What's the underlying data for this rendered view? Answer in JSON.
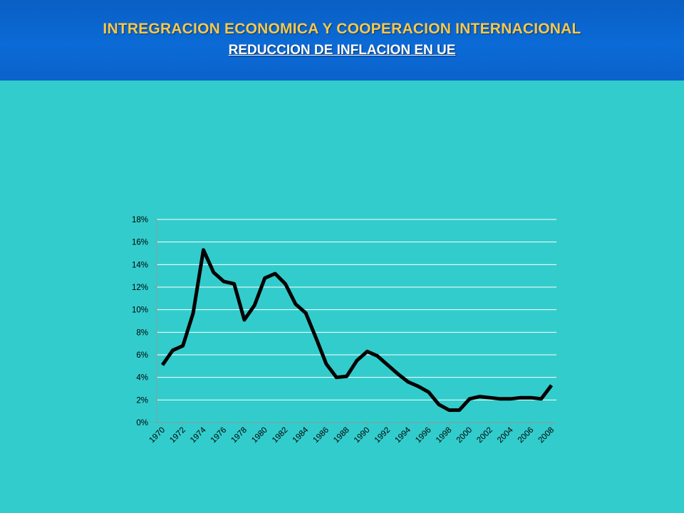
{
  "header": {
    "title": "INTREGRACION ECONOMICA Y COOPERACION INTERNACIONAL",
    "subtitle": "REDUCCION DE INFLACION EN UE"
  },
  "colors": {
    "background": "#33cccc",
    "header_bar": "#0b66d0",
    "title_text": "#f5c84c",
    "subtitle_text": "#ffffff",
    "series_line": "#000000",
    "gridline": "#ffffff"
  },
  "chart_data": {
    "type": "line",
    "title": "",
    "xlabel": "",
    "ylabel": "",
    "ylim": [
      0,
      18
    ],
    "y_ticks": [
      0,
      2,
      4,
      6,
      8,
      10,
      12,
      14,
      16,
      18
    ],
    "y_tick_labels": [
      "0%",
      "2%",
      "4%",
      "6%",
      "8%",
      "10%",
      "12%",
      "14%",
      "16%",
      "18%"
    ],
    "x_tick_labels": [
      "1970",
      "1972",
      "1974",
      "1976",
      "1978",
      "1980",
      "1982",
      "1984",
      "1986",
      "1988",
      "1990",
      "1992",
      "1994",
      "1996",
      "1998",
      "2000",
      "2002",
      "2004",
      "2006",
      "2008"
    ],
    "grid": true,
    "legend": "none",
    "x": [
      1970,
      1971,
      1972,
      1973,
      1974,
      1975,
      1976,
      1977,
      1978,
      1979,
      1980,
      1981,
      1982,
      1983,
      1984,
      1985,
      1986,
      1987,
      1988,
      1989,
      1990,
      1991,
      1992,
      1993,
      1994,
      1995,
      1996,
      1997,
      1998,
      1999,
      2000,
      2001,
      2002,
      2003,
      2004,
      2005,
      2006,
      2007,
      2008
    ],
    "series": [
      {
        "values": [
          5.1,
          6.4,
          6.8,
          9.7,
          15.3,
          13.3,
          12.5,
          12.3,
          9.1,
          10.4,
          12.8,
          13.2,
          12.3,
          10.5,
          9.7,
          7.5,
          5.2,
          4.0,
          4.1,
          5.5,
          6.3,
          5.9,
          5.1,
          4.3,
          3.6,
          3.2,
          2.7,
          1.6,
          1.1,
          1.1,
          2.1,
          2.3,
          2.2,
          2.1,
          2.1,
          2.2,
          2.2,
          2.1,
          3.3
        ]
      }
    ]
  }
}
